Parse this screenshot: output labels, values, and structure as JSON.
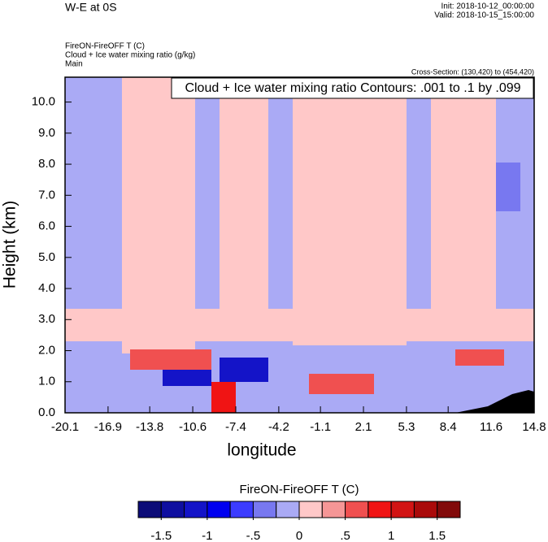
{
  "chart_data": {
    "type": "contour",
    "title": "W-E at 0S",
    "init_label": "Init: 2018-10-12_00:00:00",
    "valid_label": "Valid: 2018-10-15_15:00:00",
    "field_labels": [
      "FireON-FireOFF T   (C)",
      "Cloud + Ice water mixing ratio   (g/kg)",
      "Main"
    ],
    "cross_section": "Cross-Section: (130,420) to (454,420)",
    "contour_note": "Cloud + Ice water mixing ratio Contours: .001 to .1 by .099",
    "xlabel": "longitude",
    "ylabel": "Height (km)",
    "xlim": [
      -20.1,
      14.8
    ],
    "xticks": [
      -20.1,
      -16.9,
      -13.8,
      -10.6,
      -7.4,
      -4.2,
      -1.1,
      2.1,
      5.3,
      8.4,
      11.6,
      14.8
    ],
    "ylim": [
      0,
      10.8
    ],
    "yticks": [
      {
        "value": 0,
        "label": "0.0"
      },
      {
        "value": 1,
        "label": "1.0"
      },
      {
        "value": 2,
        "label": "2.0"
      },
      {
        "value": 3,
        "label": "3.0"
      },
      {
        "value": 4,
        "label": "4.0"
      },
      {
        "value": 5,
        "label": "5.0"
      },
      {
        "value": 6,
        "label": "6.0"
      },
      {
        "value": 7,
        "label": "7.0"
      },
      {
        "value": 8,
        "label": "8.0"
      },
      {
        "value": 9,
        "label": "9.0"
      },
      {
        "value": 10,
        "label": "10.0"
      }
    ],
    "colorbar": {
      "title": "FireON-FireOFF T  (C)",
      "levels": [
        -1.5,
        -1.25,
        -1,
        -0.75,
        -0.5,
        -0.25,
        0,
        0.25,
        0.5,
        0.75,
        1,
        1.25,
        1.5
      ],
      "colors": [
        "#0c0c78",
        "#0f0fa0",
        "#1414c8",
        "#0000f0",
        "#3c3cff",
        "#7878f0",
        "#aaaaf5",
        "#ffc8c8",
        "#f59696",
        "#f05050",
        "#f01414",
        "#d21414",
        "#aa0a0a",
        "#820a0a"
      ],
      "ticks": [
        -1.5,
        -1,
        {
          "value": -0.5,
          "label": "-.5"
        },
        0,
        {
          "value": 0.5,
          "label": ".5"
        },
        1,
        1.5
      ]
    }
  }
}
